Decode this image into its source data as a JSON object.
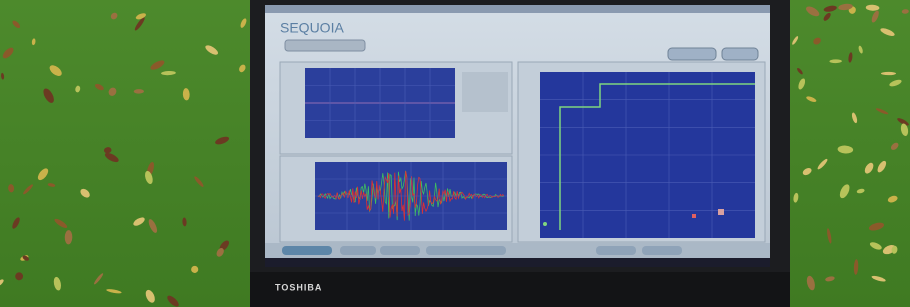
{
  "screen": {
    "logo": "SEQUOIA"
  },
  "laptop": {
    "brand": "TOSHIBA"
  }
}
